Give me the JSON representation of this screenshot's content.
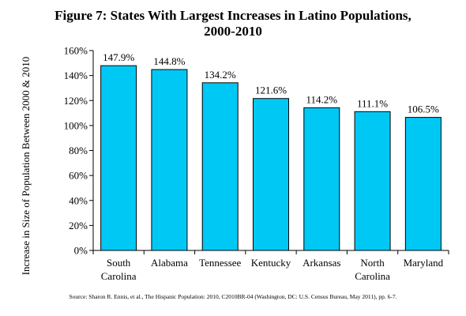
{
  "chart_data": {
    "type": "bar",
    "title_lines": [
      "Figure 7: States With Largest Increases in Latino Populations,",
      "2000-2010"
    ],
    "ylabel": "Increase in Size of Population Between 2000 & 2010",
    "xlabel": "",
    "categories": [
      [
        "South",
        "Carolina"
      ],
      [
        "Alabama"
      ],
      [
        "Tennessee"
      ],
      [
        "Kentucky"
      ],
      [
        "Arkansas"
      ],
      [
        "North",
        "Carolina"
      ],
      [
        "Maryland"
      ]
    ],
    "values": [
      147.9,
      144.8,
      134.2,
      121.6,
      114.2,
      111.1,
      106.5
    ],
    "value_labels": [
      "147.9%",
      "144.8%",
      "134.2%",
      "121.6%",
      "114.2%",
      "111.1%",
      "106.5%"
    ],
    "ylim": [
      0,
      160
    ],
    "yticks": [
      0,
      20,
      40,
      60,
      80,
      100,
      120,
      140,
      160
    ],
    "ytick_labels": [
      "0%",
      "20%",
      "40%",
      "60%",
      "80%",
      "100%",
      "120%",
      "140%",
      "160%"
    ],
    "grid": false,
    "bar_color": "#00C8F5",
    "bar_edge_color": "#000000"
  },
  "source": "Source: Sharon R. Ennis, et al., The Hispanic Population: 2010, C2010BR-04 (Washington, DC: U.S. Census Bureau, May 2011), pp. 6-7."
}
